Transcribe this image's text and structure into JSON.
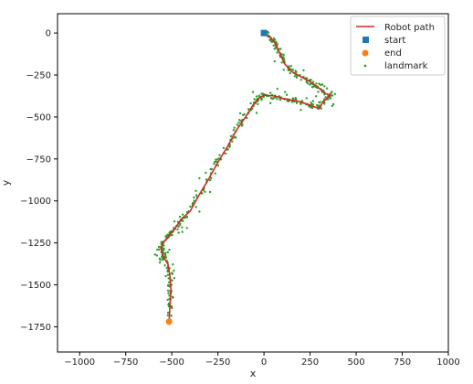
{
  "chart_data": {
    "type": "scatter",
    "xlabel": "x",
    "ylabel": "y",
    "xlim": [
      -1120,
      1000
    ],
    "ylim": [
      -1900,
      115
    ],
    "x_ticks": [
      -1000,
      -750,
      -500,
      -250,
      0,
      250,
      500,
      750,
      1000
    ],
    "y_ticks": [
      0,
      -250,
      -500,
      -750,
      -1000,
      -1250,
      -1500,
      -1750
    ],
    "grid": false,
    "legend_position": "top-right",
    "colors": {
      "path": "#d62728",
      "start": "#1f77b4",
      "end": "#ff7f0e",
      "landmark": "#2ca02c"
    },
    "legend": [
      {
        "key": "path",
        "label": "Robot path"
      },
      {
        "key": "start",
        "label": "start"
      },
      {
        "key": "end",
        "label": "end"
      },
      {
        "key": "landmark",
        "label": "landmark"
      }
    ],
    "start": {
      "x": 0,
      "y": 0
    },
    "end": {
      "x": -515,
      "y": -1720
    },
    "path": {
      "x": [
        0,
        30,
        60,
        90,
        110,
        150,
        200,
        250,
        290,
        330,
        360,
        320,
        300,
        250,
        200,
        150,
        100,
        60,
        0,
        -30,
        -60,
        -100,
        -150,
        -200,
        -250,
        -300,
        -350,
        -400,
        -450,
        -480,
        -510,
        -540,
        -560,
        -550,
        -540,
        -520,
        -510,
        -505,
        -510,
        -515
      ],
      "y": [
        0,
        -20,
        -60,
        -130,
        -180,
        -230,
        -260,
        -290,
        -320,
        -360,
        -370,
        -410,
        -450,
        -430,
        -410,
        -400,
        -390,
        -375,
        -370,
        -390,
        -430,
        -500,
        -580,
        -680,
        -770,
        -870,
        -960,
        -1060,
        -1110,
        -1160,
        -1200,
        -1240,
        -1280,
        -1320,
        -1340,
        -1380,
        -1450,
        -1530,
        -1620,
        -1720
      ]
    },
    "landmarks_seed": 12345
  }
}
